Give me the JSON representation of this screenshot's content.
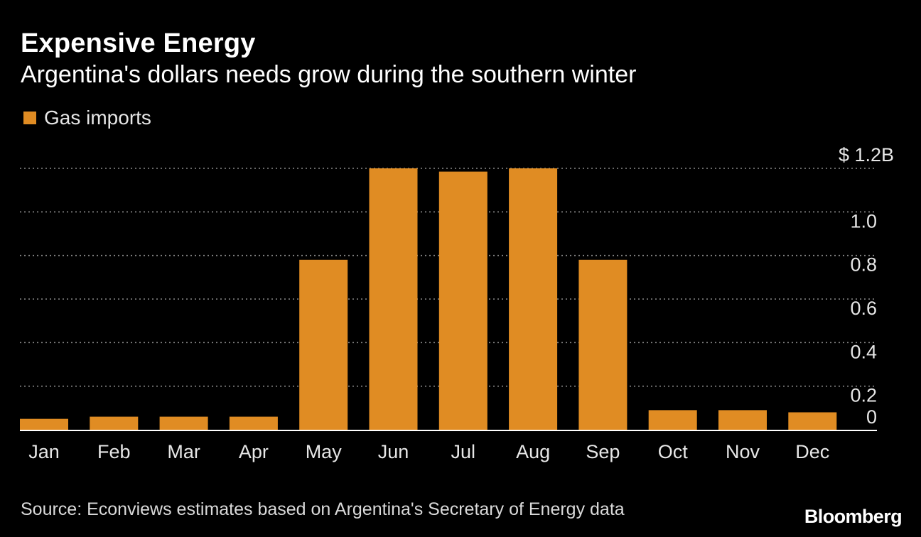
{
  "header": {
    "title": "Expensive Energy",
    "subtitle": "Argentina's dollars needs grow during the southern winter"
  },
  "legend": {
    "label": "Gas imports"
  },
  "footer": {
    "source": "Source: Econviews estimates based on Argentina's Secretary of Energy data",
    "logo": "Bloomberg"
  },
  "colors": {
    "background": "#000000",
    "bar": "#e08c23",
    "grid": "#8a8a8a",
    "axis": "#ffffff",
    "tick_text": "#e6e6e6"
  },
  "chart_data": {
    "type": "bar",
    "title": "Expensive Energy",
    "subtitle": "Argentina's dollars needs grow during the southern winter",
    "xlabel": "",
    "ylabel": "",
    "grid": true,
    "legend_position": "top-left",
    "categories": [
      "Jan",
      "Feb",
      "Mar",
      "Apr",
      "May",
      "Jun",
      "Jul",
      "Aug",
      "Sep",
      "Oct",
      "Nov",
      "Dec"
    ],
    "series": [
      {
        "name": "Gas imports",
        "values": [
          0.05,
          0.06,
          0.06,
          0.06,
          0.78,
          1.2,
          1.185,
          1.2,
          0.78,
          0.09,
          0.09,
          0.08
        ]
      }
    ],
    "ylim": [
      0,
      1.2
    ],
    "y_ticks": [
      0,
      0.2,
      0.4,
      0.6,
      0.8,
      1.0,
      1.2
    ],
    "y_tick_labels": [
      "0",
      "0.2",
      "0.4",
      "0.6",
      "0.8",
      "1.0",
      "$ 1.2B"
    ],
    "y_axis_side": "right"
  }
}
